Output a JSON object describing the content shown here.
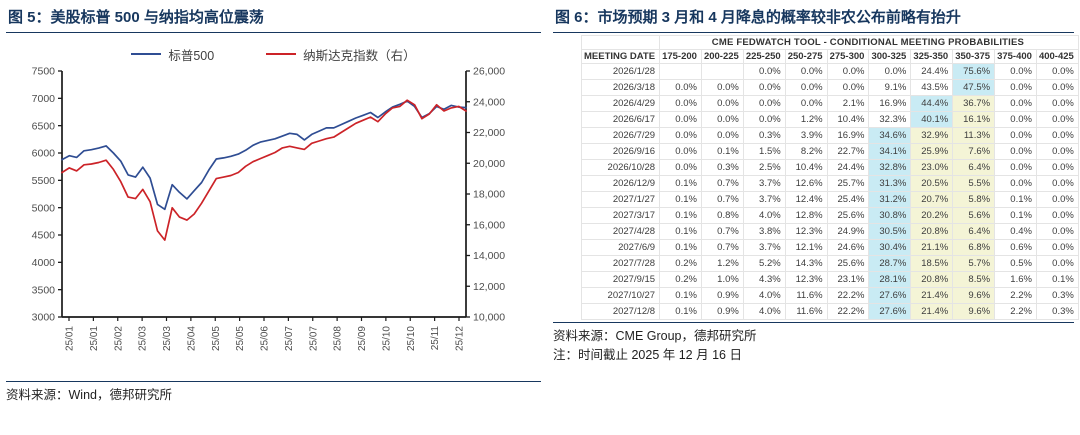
{
  "left_panel": {
    "title": "图 5：美股标普 500 与纳指均高位震荡",
    "source": "资料来源：Wind，德邦研究所"
  },
  "right_panel": {
    "title": "图 6：市场预期 3 月和 4 月降息的概率较非农公布前略有抬升",
    "source": "资料来源：CME Group，德邦研究所",
    "note": "注：时间截止 2025 年 12 月 16 日"
  },
  "chart_data": [
    {
      "type": "line",
      "title": "美股标普 500 与纳指均高位震荡",
      "legend_position": "top",
      "grid": false,
      "x_tick_labels": [
        "25/01",
        "25/01",
        "25/02",
        "25/03",
        "25/03",
        "25/04",
        "25/05",
        "25/05",
        "25/06",
        "25/07",
        "25/07",
        "25/08",
        "25/09",
        "25/10",
        "25/10",
        "25/11",
        "25/12"
      ],
      "left_axis": {
        "min": 3000,
        "max": 7500,
        "ticks": [
          7500,
          7000,
          6500,
          6000,
          5500,
          5000,
          4500,
          4000,
          3500,
          3000
        ]
      },
      "right_axis": {
        "min": 10000,
        "max": 26000,
        "ticks": [
          26000,
          24000,
          22000,
          20000,
          18000,
          16000,
          14000,
          12000,
          10000
        ]
      },
      "series": [
        {
          "name": "标普500",
          "axis": "left",
          "color": "#2f4d93",
          "values": [
            5880,
            5950,
            5920,
            6040,
            6060,
            6090,
            6130,
            6000,
            5850,
            5600,
            5560,
            5740,
            5540,
            5060,
            4970,
            5420,
            5280,
            5160,
            5310,
            5460,
            5690,
            5890,
            5910,
            5940,
            5980,
            6050,
            6140,
            6200,
            6230,
            6260,
            6310,
            6360,
            6340,
            6240,
            6340,
            6400,
            6460,
            6460,
            6520,
            6580,
            6640,
            6690,
            6740,
            6650,
            6750,
            6840,
            6890,
            6950,
            6850,
            6650,
            6720,
            6850,
            6800,
            6870,
            6840,
            6830
          ]
        },
        {
          "name": "纳斯达克指数（右）",
          "axis": "right",
          "color": "#cc2328",
          "values": [
            19400,
            19700,
            19500,
            19900,
            19950,
            20050,
            20200,
            19600,
            18800,
            17800,
            17700,
            18300,
            17500,
            15600,
            15000,
            17100,
            16500,
            16300,
            16700,
            17400,
            18200,
            19000,
            19100,
            19200,
            19400,
            19800,
            20100,
            20300,
            20500,
            20700,
            21000,
            21100,
            21000,
            20900,
            21300,
            21450,
            21600,
            21700,
            22000,
            22300,
            22600,
            22800,
            23000,
            22700,
            23200,
            23600,
            23700,
            24100,
            23800,
            22900,
            23200,
            23800,
            23400,
            23600,
            23700,
            23400
          ]
        }
      ]
    },
    {
      "type": "table",
      "title": "CME FEDWATCH TOOL - CONDITIONAL MEETING PROBABILITIES",
      "date_header": "MEETING DATE",
      "columns": [
        "175-200",
        "200-225",
        "225-250",
        "250-275",
        "275-300",
        "300-325",
        "325-350",
        "350-375",
        "375-400",
        "400-425"
      ],
      "highlight_colors": {
        "blue": "#c9ebf4",
        "yellow": "#f4f4d6"
      },
      "rows": [
        {
          "date": "2026/1/28",
          "cells": [
            "",
            "",
            "0.0%",
            "0.0%",
            "0.0%",
            "0.0%",
            "24.4%",
            "75.6%",
            "0.0%",
            "0.0%"
          ],
          "hl": {
            "7": "blue"
          }
        },
        {
          "date": "2026/3/18",
          "cells": [
            "0.0%",
            "0.0%",
            "0.0%",
            "0.0%",
            "0.0%",
            "9.1%",
            "43.5%",
            "47.5%",
            "0.0%",
            "0.0%"
          ],
          "hl": {
            "7": "blue"
          }
        },
        {
          "date": "2026/4/29",
          "cells": [
            "0.0%",
            "0.0%",
            "0.0%",
            "0.0%",
            "2.1%",
            "16.9%",
            "44.4%",
            "36.7%",
            "0.0%",
            "0.0%"
          ],
          "hl": {
            "6": "blue",
            "7": "yellow"
          }
        },
        {
          "date": "2026/6/17",
          "cells": [
            "0.0%",
            "0.0%",
            "0.0%",
            "1.2%",
            "10.4%",
            "32.3%",
            "40.1%",
            "16.1%",
            "0.0%",
            "0.0%"
          ],
          "hl": {
            "6": "blue",
            "7": "yellow"
          }
        },
        {
          "date": "2026/7/29",
          "cells": [
            "0.0%",
            "0.0%",
            "0.3%",
            "3.9%",
            "16.9%",
            "34.6%",
            "32.9%",
            "11.3%",
            "0.0%",
            "0.0%"
          ],
          "hl": {
            "5": "blue",
            "6": "yellow",
            "7": "yellow"
          }
        },
        {
          "date": "2026/9/16",
          "cells": [
            "0.0%",
            "0.1%",
            "1.5%",
            "8.2%",
            "22.7%",
            "34.1%",
            "25.9%",
            "7.6%",
            "0.0%",
            "0.0%"
          ],
          "hl": {
            "5": "blue",
            "6": "yellow",
            "7": "yellow"
          }
        },
        {
          "date": "2026/10/28",
          "cells": [
            "0.0%",
            "0.3%",
            "2.5%",
            "10.4%",
            "24.4%",
            "32.8%",
            "23.0%",
            "6.4%",
            "0.0%",
            "0.0%"
          ],
          "hl": {
            "5": "blue",
            "6": "yellow",
            "7": "yellow"
          }
        },
        {
          "date": "2026/12/9",
          "cells": [
            "0.1%",
            "0.7%",
            "3.7%",
            "12.6%",
            "25.7%",
            "31.3%",
            "20.5%",
            "5.5%",
            "0.0%",
            "0.0%"
          ],
          "hl": {
            "5": "blue",
            "6": "yellow",
            "7": "yellow"
          }
        },
        {
          "date": "2027/1/27",
          "cells": [
            "0.1%",
            "0.7%",
            "3.7%",
            "12.4%",
            "25.4%",
            "31.2%",
            "20.7%",
            "5.8%",
            "0.1%",
            "0.0%"
          ],
          "hl": {
            "5": "blue",
            "6": "yellow",
            "7": "yellow"
          }
        },
        {
          "date": "2027/3/17",
          "cells": [
            "0.1%",
            "0.8%",
            "4.0%",
            "12.8%",
            "25.6%",
            "30.8%",
            "20.2%",
            "5.6%",
            "0.1%",
            "0.0%"
          ],
          "hl": {
            "5": "blue",
            "6": "yellow",
            "7": "yellow"
          }
        },
        {
          "date": "2027/4/28",
          "cells": [
            "0.1%",
            "0.7%",
            "3.8%",
            "12.3%",
            "24.9%",
            "30.5%",
            "20.8%",
            "6.4%",
            "0.4%",
            "0.0%"
          ],
          "hl": {
            "5": "blue",
            "6": "yellow",
            "7": "yellow"
          }
        },
        {
          "date": "2027/6/9",
          "cells": [
            "0.1%",
            "0.7%",
            "3.7%",
            "12.1%",
            "24.6%",
            "30.4%",
            "21.1%",
            "6.8%",
            "0.6%",
            "0.0%"
          ],
          "hl": {
            "5": "blue",
            "6": "yellow",
            "7": "yellow"
          }
        },
        {
          "date": "2027/7/28",
          "cells": [
            "0.2%",
            "1.2%",
            "5.2%",
            "14.3%",
            "25.6%",
            "28.7%",
            "18.5%",
            "5.7%",
            "0.5%",
            "0.0%"
          ],
          "hl": {
            "5": "blue",
            "6": "yellow",
            "7": "yellow"
          }
        },
        {
          "date": "2027/9/15",
          "cells": [
            "0.2%",
            "1.0%",
            "4.3%",
            "12.3%",
            "23.1%",
            "28.1%",
            "20.8%",
            "8.5%",
            "1.6%",
            "0.1%"
          ],
          "hl": {
            "5": "blue",
            "6": "yellow",
            "7": "yellow"
          }
        },
        {
          "date": "2027/10/27",
          "cells": [
            "0.1%",
            "0.9%",
            "4.0%",
            "11.6%",
            "22.2%",
            "27.6%",
            "21.4%",
            "9.6%",
            "2.2%",
            "0.3%"
          ],
          "hl": {
            "5": "blue",
            "6": "yellow",
            "7": "yellow"
          }
        },
        {
          "date": "2027/12/8",
          "cells": [
            "0.1%",
            "0.9%",
            "4.0%",
            "11.6%",
            "22.2%",
            "27.6%",
            "21.4%",
            "9.6%",
            "2.2%",
            "0.3%"
          ],
          "hl": {
            "5": "blue",
            "6": "yellow",
            "7": "yellow"
          }
        }
      ]
    }
  ]
}
